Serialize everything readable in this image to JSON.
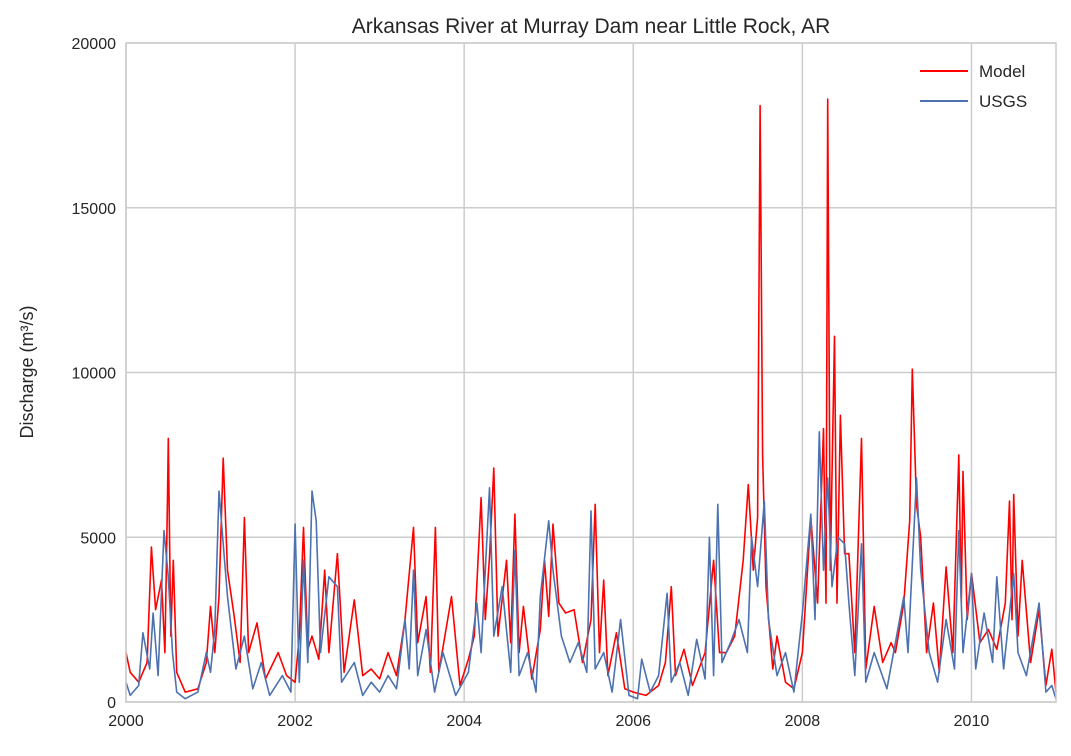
{
  "chart_data": {
    "type": "line",
    "title": "Arkansas River at Murray Dam near Little Rock, AR",
    "xlabel": "",
    "ylabel": "Discharge (m³/s)",
    "xlim": [
      2000,
      2011
    ],
    "ylim": [
      0,
      20000
    ],
    "xticks": [
      "2000",
      "2002",
      "2004",
      "2006",
      "2008",
      "2010"
    ],
    "yticks": [
      "0",
      "5000",
      "10000",
      "15000",
      "20000"
    ],
    "grid": true,
    "legend": "top-right",
    "series": [
      {
        "name": "Model",
        "color": "#ff0000",
        "points": [
          [
            2000.0,
            1500
          ],
          [
            2000.05,
            900
          ],
          [
            2000.15,
            600
          ],
          [
            2000.25,
            1200
          ],
          [
            2000.3,
            4700
          ],
          [
            2000.35,
            2800
          ],
          [
            2000.42,
            3700
          ],
          [
            2000.46,
            1500
          ],
          [
            2000.49,
            6000
          ],
          [
            2000.5,
            8000
          ],
          [
            2000.53,
            2000
          ],
          [
            2000.56,
            4300
          ],
          [
            2000.6,
            900
          ],
          [
            2000.7,
            300
          ],
          [
            2000.85,
            400
          ],
          [
            2000.95,
            1200
          ],
          [
            2001.0,
            2900
          ],
          [
            2001.05,
            1500
          ],
          [
            2001.1,
            3200
          ],
          [
            2001.15,
            7400
          ],
          [
            2001.2,
            4000
          ],
          [
            2001.28,
            2600
          ],
          [
            2001.35,
            1200
          ],
          [
            2001.4,
            5600
          ],
          [
            2001.45,
            1500
          ],
          [
            2001.55,
            2400
          ],
          [
            2001.65,
            700
          ],
          [
            2001.8,
            1500
          ],
          [
            2001.9,
            800
          ],
          [
            2002.0,
            600
          ],
          [
            2002.05,
            2000
          ],
          [
            2002.1,
            5300
          ],
          [
            2002.15,
            1600
          ],
          [
            2002.2,
            2000
          ],
          [
            2002.28,
            1300
          ],
          [
            2002.35,
            4000
          ],
          [
            2002.4,
            1500
          ],
          [
            2002.5,
            4500
          ],
          [
            2002.58,
            900
          ],
          [
            2002.7,
            3100
          ],
          [
            2002.8,
            800
          ],
          [
            2002.9,
            1000
          ],
          [
            2003.0,
            700
          ],
          [
            2003.1,
            1500
          ],
          [
            2003.2,
            800
          ],
          [
            2003.3,
            2500
          ],
          [
            2003.4,
            5300
          ],
          [
            2003.45,
            1800
          ],
          [
            2003.55,
            3200
          ],
          [
            2003.6,
            900
          ],
          [
            2003.66,
            5300
          ],
          [
            2003.7,
            900
          ],
          [
            2003.85,
            3200
          ],
          [
            2003.95,
            500
          ],
          [
            2004.05,
            1300
          ],
          [
            2004.12,
            2000
          ],
          [
            2004.2,
            6200
          ],
          [
            2004.25,
            2500
          ],
          [
            2004.3,
            4400
          ],
          [
            2004.35,
            7100
          ],
          [
            2004.4,
            2000
          ],
          [
            2004.5,
            4300
          ],
          [
            2004.55,
            1800
          ],
          [
            2004.6,
            5700
          ],
          [
            2004.65,
            1500
          ],
          [
            2004.7,
            2900
          ],
          [
            2004.8,
            700
          ],
          [
            2004.9,
            2200
          ],
          [
            2004.95,
            4300
          ],
          [
            2005.0,
            2600
          ],
          [
            2005.05,
            5400
          ],
          [
            2005.12,
            3000
          ],
          [
            2005.2,
            2700
          ],
          [
            2005.3,
            2800
          ],
          [
            2005.4,
            1200
          ],
          [
            2005.5,
            2500
          ],
          [
            2005.55,
            6000
          ],
          [
            2005.6,
            1500
          ],
          [
            2005.65,
            3700
          ],
          [
            2005.7,
            800
          ],
          [
            2005.8,
            2100
          ],
          [
            2005.9,
            400
          ],
          [
            2006.0,
            300
          ],
          [
            2006.15,
            200
          ],
          [
            2006.3,
            500
          ],
          [
            2006.38,
            1200
          ],
          [
            2006.45,
            3500
          ],
          [
            2006.5,
            800
          ],
          [
            2006.6,
            1600
          ],
          [
            2006.7,
            500
          ],
          [
            2006.85,
            1500
          ],
          [
            2006.95,
            4300
          ],
          [
            2007.02,
            1500
          ],
          [
            2007.1,
            1500
          ],
          [
            2007.2,
            2000
          ],
          [
            2007.3,
            4300
          ],
          [
            2007.36,
            6600
          ],
          [
            2007.42,
            4000
          ],
          [
            2007.47,
            5600
          ],
          [
            2007.5,
            18100
          ],
          [
            2007.53,
            7500
          ],
          [
            2007.57,
            3500
          ],
          [
            2007.65,
            1000
          ],
          [
            2007.7,
            2000
          ],
          [
            2007.8,
            600
          ],
          [
            2007.9,
            400
          ],
          [
            2008.0,
            1500
          ],
          [
            2008.1,
            5600
          ],
          [
            2008.18,
            3000
          ],
          [
            2008.25,
            8300
          ],
          [
            2008.28,
            3000
          ],
          [
            2008.3,
            18300
          ],
          [
            2008.33,
            4000
          ],
          [
            2008.38,
            11100
          ],
          [
            2008.41,
            3000
          ],
          [
            2008.45,
            8700
          ],
          [
            2008.5,
            4500
          ],
          [
            2008.55,
            4500
          ],
          [
            2008.62,
            1500
          ],
          [
            2008.7,
            8000
          ],
          [
            2008.75,
            1000
          ],
          [
            2008.85,
            2900
          ],
          [
            2008.95,
            1200
          ],
          [
            2009.05,
            1800
          ],
          [
            2009.1,
            1500
          ],
          [
            2009.2,
            3000
          ],
          [
            2009.27,
            5500
          ],
          [
            2009.3,
            10100
          ],
          [
            2009.35,
            6000
          ],
          [
            2009.4,
            5000
          ],
          [
            2009.47,
            1500
          ],
          [
            2009.55,
            3000
          ],
          [
            2009.62,
            900
          ],
          [
            2009.7,
            4100
          ],
          [
            2009.78,
            1500
          ],
          [
            2009.85,
            7500
          ],
          [
            2009.88,
            3000
          ],
          [
            2009.9,
            7000
          ],
          [
            2009.95,
            2500
          ],
          [
            2010.0,
            3900
          ],
          [
            2010.1,
            1800
          ],
          [
            2010.2,
            2200
          ],
          [
            2010.3,
            1600
          ],
          [
            2010.4,
            3000
          ],
          [
            2010.45,
            6100
          ],
          [
            2010.48,
            2500
          ],
          [
            2010.5,
            6300
          ],
          [
            2010.55,
            2000
          ],
          [
            2010.6,
            4300
          ],
          [
            2010.7,
            1200
          ],
          [
            2010.8,
            2800
          ],
          [
            2010.88,
            500
          ],
          [
            2010.95,
            1600
          ],
          [
            2011.0,
            300
          ]
        ]
      },
      {
        "name": "USGS",
        "color": "#4c72b0",
        "points": [
          [
            2000.0,
            600
          ],
          [
            2000.05,
            200
          ],
          [
            2000.15,
            500
          ],
          [
            2000.2,
            2100
          ],
          [
            2000.28,
            1000
          ],
          [
            2000.32,
            2700
          ],
          [
            2000.38,
            800
          ],
          [
            2000.45,
            5200
          ],
          [
            2000.5,
            3800
          ],
          [
            2000.55,
            1500
          ],
          [
            2000.6,
            300
          ],
          [
            2000.7,
            100
          ],
          [
            2000.85,
            300
          ],
          [
            2000.95,
            1500
          ],
          [
            2001.0,
            900
          ],
          [
            2001.05,
            2200
          ],
          [
            2001.1,
            6400
          ],
          [
            2001.15,
            4800
          ],
          [
            2001.2,
            3200
          ],
          [
            2001.3,
            1000
          ],
          [
            2001.4,
            2000
          ],
          [
            2001.5,
            400
          ],
          [
            2001.6,
            1200
          ],
          [
            2001.7,
            200
          ],
          [
            2001.85,
            800
          ],
          [
            2001.95,
            300
          ],
          [
            2002.0,
            5400
          ],
          [
            2002.05,
            600
          ],
          [
            2002.1,
            4300
          ],
          [
            2002.15,
            1200
          ],
          [
            2002.2,
            6400
          ],
          [
            2002.25,
            5500
          ],
          [
            2002.3,
            1500
          ],
          [
            2002.4,
            3800
          ],
          [
            2002.5,
            3500
          ],
          [
            2002.55,
            600
          ],
          [
            2002.7,
            1200
          ],
          [
            2002.8,
            200
          ],
          [
            2002.9,
            600
          ],
          [
            2003.0,
            300
          ],
          [
            2003.1,
            800
          ],
          [
            2003.2,
            400
          ],
          [
            2003.3,
            2500
          ],
          [
            2003.35,
            1000
          ],
          [
            2003.4,
            4000
          ],
          [
            2003.45,
            800
          ],
          [
            2003.55,
            2200
          ],
          [
            2003.65,
            300
          ],
          [
            2003.75,
            1500
          ],
          [
            2003.9,
            200
          ],
          [
            2004.05,
            900
          ],
          [
            2004.15,
            3000
          ],
          [
            2004.2,
            1500
          ],
          [
            2004.3,
            6500
          ],
          [
            2004.35,
            2000
          ],
          [
            2004.45,
            3500
          ],
          [
            2004.55,
            900
          ],
          [
            2004.6,
            4600
          ],
          [
            2004.65,
            800
          ],
          [
            2004.75,
            1500
          ],
          [
            2004.85,
            300
          ],
          [
            2004.9,
            3200
          ],
          [
            2005.0,
            5500
          ],
          [
            2005.05,
            4000
          ],
          [
            2005.15,
            2000
          ],
          [
            2005.25,
            1200
          ],
          [
            2005.35,
            1800
          ],
          [
            2005.45,
            900
          ],
          [
            2005.5,
            5800
          ],
          [
            2005.55,
            1000
          ],
          [
            2005.65,
            1500
          ],
          [
            2005.75,
            300
          ],
          [
            2005.85,
            2500
          ],
          [
            2005.95,
            200
          ],
          [
            2006.05,
            100
          ],
          [
            2006.1,
            1300
          ],
          [
            2006.2,
            300
          ],
          [
            2006.3,
            800
          ],
          [
            2006.4,
            3300
          ],
          [
            2006.45,
            600
          ],
          [
            2006.55,
            1200
          ],
          [
            2006.65,
            200
          ],
          [
            2006.75,
            1900
          ],
          [
            2006.85,
            700
          ],
          [
            2006.9,
            5000
          ],
          [
            2006.95,
            800
          ],
          [
            2007.0,
            6000
          ],
          [
            2007.05,
            1200
          ],
          [
            2007.15,
            1800
          ],
          [
            2007.25,
            2500
          ],
          [
            2007.35,
            1500
          ],
          [
            2007.4,
            5000
          ],
          [
            2007.47,
            3500
          ],
          [
            2007.55,
            6100
          ],
          [
            2007.6,
            2500
          ],
          [
            2007.7,
            800
          ],
          [
            2007.8,
            1500
          ],
          [
            2007.9,
            300
          ],
          [
            2008.0,
            2700
          ],
          [
            2008.1,
            5700
          ],
          [
            2008.15,
            2500
          ],
          [
            2008.2,
            8200
          ],
          [
            2008.25,
            4000
          ],
          [
            2008.3,
            6800
          ],
          [
            2008.35,
            3500
          ],
          [
            2008.42,
            5000
          ],
          [
            2008.5,
            4800
          ],
          [
            2008.55,
            3000
          ],
          [
            2008.62,
            800
          ],
          [
            2008.7,
            4800
          ],
          [
            2008.75,
            600
          ],
          [
            2008.85,
            1500
          ],
          [
            2009.0,
            400
          ],
          [
            2009.1,
            1800
          ],
          [
            2009.2,
            3200
          ],
          [
            2009.25,
            1500
          ],
          [
            2009.35,
            6800
          ],
          [
            2009.4,
            4000
          ],
          [
            2009.5,
            1500
          ],
          [
            2009.6,
            600
          ],
          [
            2009.7,
            2500
          ],
          [
            2009.8,
            1000
          ],
          [
            2009.85,
            5200
          ],
          [
            2009.9,
            1500
          ],
          [
            2010.0,
            3900
          ],
          [
            2010.05,
            1000
          ],
          [
            2010.15,
            2700
          ],
          [
            2010.25,
            1200
          ],
          [
            2010.3,
            3800
          ],
          [
            2010.38,
            1000
          ],
          [
            2010.5,
            3900
          ],
          [
            2010.55,
            1500
          ],
          [
            2010.65,
            800
          ],
          [
            2010.8,
            3000
          ],
          [
            2010.88,
            300
          ],
          [
            2010.95,
            500
          ],
          [
            2011.0,
            100
          ]
        ]
      }
    ]
  }
}
